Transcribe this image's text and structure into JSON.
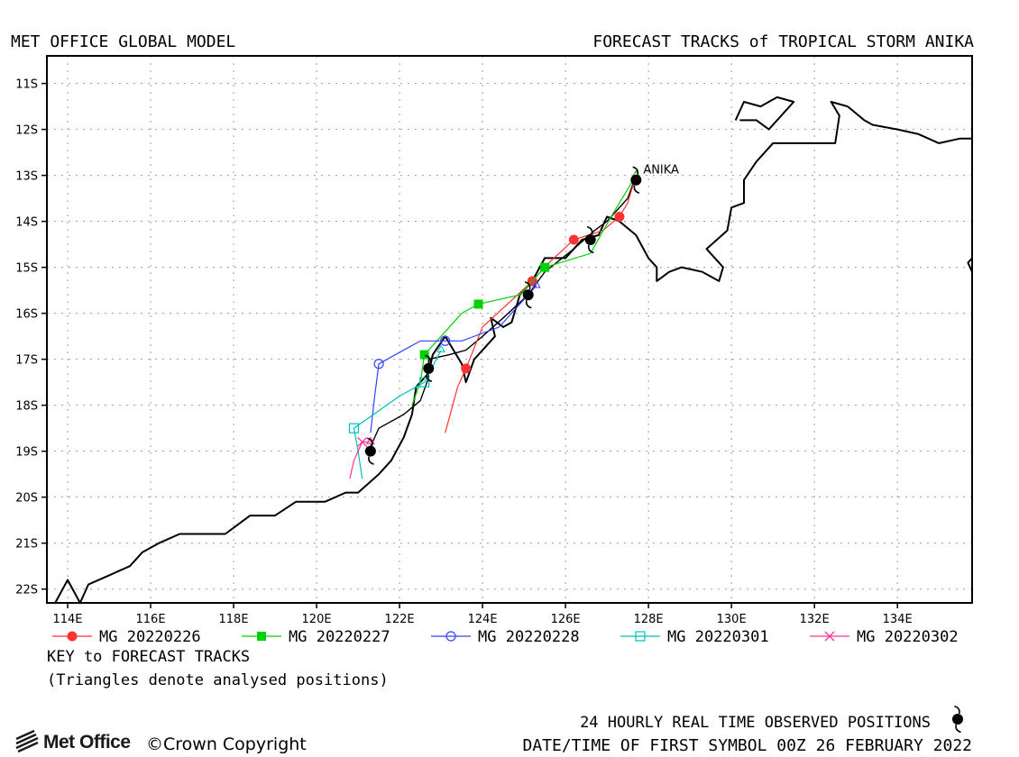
{
  "header": {
    "left_title": "MET OFFICE GLOBAL MODEL",
    "right_title": "FORECAST TRACKS of TROPICAL STORM ANIKA"
  },
  "map": {
    "lon_range": [
      113.5,
      135.8
    ],
    "lat_range": [
      -22.3,
      -10.4
    ],
    "lon_ticks": [
      114,
      116,
      118,
      120,
      122,
      124,
      126,
      128,
      130,
      132,
      134
    ],
    "lon_tick_labels": [
      "114E",
      "116E",
      "118E",
      "120E",
      "122E",
      "124E",
      "126E",
      "128E",
      "130E",
      "132E",
      "134E"
    ],
    "lat_ticks": [
      -11,
      -12,
      -13,
      -14,
      -15,
      -16,
      -17,
      -18,
      -19,
      -20,
      -21,
      -22
    ],
    "lat_tick_labels": [
      "11S",
      "12S",
      "13S",
      "14S",
      "15S",
      "16S",
      "17S",
      "18S",
      "19S",
      "20S",
      "21S",
      "22S"
    ],
    "grid": "dotted",
    "storm_label": "ANIKA",
    "coast_main": [
      [
        113.7,
        -22.3
      ],
      [
        114.0,
        -21.8
      ],
      [
        114.3,
        -22.3
      ],
      [
        114.5,
        -21.9
      ],
      [
        115.0,
        -21.7
      ],
      [
        115.5,
        -21.5
      ],
      [
        115.8,
        -21.2
      ],
      [
        116.2,
        -21.0
      ],
      [
        116.7,
        -20.8
      ],
      [
        117.8,
        -20.8
      ],
      [
        118.4,
        -20.4
      ],
      [
        119.0,
        -20.4
      ],
      [
        119.5,
        -20.1
      ],
      [
        120.2,
        -20.1
      ],
      [
        120.7,
        -19.9
      ],
      [
        121.0,
        -19.9
      ],
      [
        121.5,
        -19.5
      ],
      [
        121.8,
        -19.2
      ],
      [
        122.1,
        -18.7
      ],
      [
        122.3,
        -18.2
      ],
      [
        122.4,
        -17.6
      ],
      [
        122.7,
        -17.3
      ],
      [
        122.8,
        -16.9
      ],
      [
        123.1,
        -16.5
      ],
      [
        123.5,
        -17.1
      ],
      [
        123.6,
        -17.5
      ],
      [
        123.8,
        -17.0
      ],
      [
        124.2,
        -16.6
      ],
      [
        124.3,
        -16.5
      ],
      [
        124.2,
        -16.1
      ],
      [
        124.5,
        -16.3
      ],
      [
        124.7,
        -16.2
      ],
      [
        124.9,
        -15.6
      ],
      [
        125.2,
        -15.3
      ],
      [
        125.5,
        -14.8
      ],
      [
        126.0,
        -14.8
      ],
      [
        126.4,
        -14.4
      ],
      [
        126.8,
        -14.3
      ],
      [
        127.0,
        -13.9
      ],
      [
        127.3,
        -14.0
      ],
      [
        127.7,
        -14.3
      ],
      [
        128.0,
        -14.8
      ],
      [
        128.2,
        -15.0
      ],
      [
        128.2,
        -15.3
      ],
      [
        128.5,
        -15.1
      ],
      [
        128.8,
        -15.0
      ],
      [
        129.3,
        -15.1
      ],
      [
        129.7,
        -15.3
      ],
      [
        129.8,
        -15.0
      ],
      [
        129.4,
        -14.6
      ],
      [
        129.9,
        -14.2
      ],
      [
        130.0,
        -13.7
      ],
      [
        130.3,
        -13.6
      ],
      [
        130.3,
        -13.1
      ],
      [
        130.6,
        -12.7
      ],
      [
        131.0,
        -12.3
      ],
      [
        132.5,
        -12.3
      ],
      [
        132.6,
        -11.7
      ],
      [
        132.4,
        -11.4
      ],
      [
        132.8,
        -11.5
      ],
      [
        133.2,
        -11.8
      ],
      [
        133.4,
        -11.9
      ],
      [
        134.0,
        -12.0
      ],
      [
        134.5,
        -12.1
      ],
      [
        135.0,
        -12.3
      ],
      [
        135.5,
        -12.2
      ],
      [
        135.8,
        -12.2
      ]
    ],
    "coast_island": [
      [
        130.1,
        -11.8
      ],
      [
        130.3,
        -11.4
      ],
      [
        130.7,
        -11.5
      ],
      [
        131.1,
        -11.3
      ],
      [
        131.5,
        -11.4
      ],
      [
        131.2,
        -11.7
      ],
      [
        130.9,
        -12.0
      ],
      [
        130.6,
        -11.8
      ],
      [
        130.2,
        -11.8
      ]
    ],
    "coast_east": [
      [
        135.8,
        -14.8
      ],
      [
        135.7,
        -14.9
      ],
      [
        135.8,
        -15.1
      ]
    ],
    "analysed_track": [
      [
        127.7,
        -13.0
      ],
      [
        127.5,
        -13.5
      ],
      [
        127.0,
        -14.0
      ],
      [
        126.7,
        -14.2
      ],
      [
        126.2,
        -14.6
      ],
      [
        125.5,
        -15.1
      ],
      [
        125.1,
        -15.6
      ],
      [
        124.5,
        -16.1
      ],
      [
        124.0,
        -16.5
      ],
      [
        123.6,
        -16.8
      ],
      [
        123.2,
        -16.9
      ],
      [
        122.7,
        -17.0
      ],
      [
        122.7,
        -17.4
      ],
      [
        122.5,
        -17.9
      ],
      [
        122.1,
        -18.2
      ],
      [
        121.5,
        -18.5
      ],
      [
        121.3,
        -18.9
      ]
    ]
  },
  "chart_data": {
    "type": "scatter",
    "title": "FORECAST TRACKS of TROPICAL STORM ANIKA",
    "subtitle": "MET OFFICE GLOBAL MODEL",
    "xlim": [
      113.5,
      135.8
    ],
    "ylim": [
      -22.3,
      -10.4
    ],
    "observed_positions": [
      [
        127.7,
        -13.1
      ],
      [
        126.6,
        -14.4
      ],
      [
        125.1,
        -15.6
      ],
      [
        122.7,
        -17.2
      ],
      [
        121.3,
        -19.0
      ]
    ],
    "series": [
      {
        "name": "MG 20220226",
        "color": "#ff3333",
        "marker": "circle-filled",
        "points": [
          [
            127.7,
            -13.0
          ],
          [
            127.5,
            -13.6
          ],
          [
            127.3,
            -13.9
          ],
          [
            126.9,
            -14.2
          ],
          [
            126.2,
            -14.4
          ],
          [
            125.6,
            -14.9
          ],
          [
            125.2,
            -15.3
          ],
          [
            124.6,
            -15.8
          ],
          [
            124.0,
            -16.3
          ],
          [
            123.6,
            -17.2
          ],
          [
            123.4,
            -17.6
          ],
          [
            123.1,
            -18.6
          ]
        ],
        "markers": [
          [
            127.3,
            -13.9
          ],
          [
            126.2,
            -14.4
          ],
          [
            125.2,
            -15.3
          ],
          [
            123.6,
            -17.2
          ]
        ]
      },
      {
        "name": "MG 20220227",
        "color": "#00d000",
        "marker": "square-filled",
        "points": [
          [
            127.7,
            -13.0
          ],
          [
            127.1,
            -13.9
          ],
          [
            126.6,
            -14.7
          ],
          [
            125.5,
            -15.0
          ],
          [
            124.9,
            -15.6
          ],
          [
            123.9,
            -15.8
          ],
          [
            123.5,
            -16.0
          ],
          [
            122.9,
            -16.6
          ],
          [
            122.6,
            -16.9
          ],
          [
            122.5,
            -17.5
          ],
          [
            122.3,
            -18.0
          ]
        ],
        "markers": [
          [
            125.5,
            -15.0
          ],
          [
            123.9,
            -15.8
          ],
          [
            122.6,
            -16.9
          ]
        ]
      },
      {
        "name": "MG 20220228",
        "color": "#3344ff",
        "marker": "circle-open",
        "points": [
          [
            125.3,
            -15.4
          ],
          [
            124.4,
            -16.3
          ],
          [
            123.5,
            -16.6
          ],
          [
            123.1,
            -16.6
          ],
          [
            122.5,
            -16.6
          ],
          [
            121.5,
            -17.1
          ],
          [
            121.4,
            -17.8
          ],
          [
            121.3,
            -18.6
          ]
        ],
        "markers": [
          [
            123.1,
            -16.6
          ],
          [
            121.5,
            -17.1
          ]
        ]
      },
      {
        "name": "MG 20220301",
        "color": "#00c0c0",
        "marker": "square-open",
        "points": [
          [
            123.0,
            -16.8
          ],
          [
            122.6,
            -17.5
          ],
          [
            122.0,
            -17.8
          ],
          [
            120.9,
            -18.5
          ],
          [
            121.0,
            -19.0
          ],
          [
            121.1,
            -19.6
          ]
        ],
        "markers": [
          [
            122.6,
            -17.5
          ],
          [
            120.9,
            -18.5
          ]
        ]
      },
      {
        "name": "MG 20220302",
        "color": "#ff3399",
        "marker": "cross",
        "points": [
          [
            121.3,
            -18.8
          ],
          [
            121.1,
            -18.8
          ],
          [
            120.9,
            -19.2
          ],
          [
            120.8,
            -19.6
          ]
        ],
        "markers": [
          [
            121.1,
            -18.8
          ]
        ]
      }
    ]
  },
  "key": {
    "title": "KEY to FORECAST TRACKS",
    "note": "(Triangles denote analysed positions)"
  },
  "footer": {
    "observed_label": "24 HOURLY REAL TIME OBSERVED POSITIONS",
    "date_label": "DATE/TIME OF FIRST SYMBOL 00Z 26 FEBRUARY 2022",
    "logo_text": "Met Office",
    "copyright": "©Crown Copyright"
  }
}
